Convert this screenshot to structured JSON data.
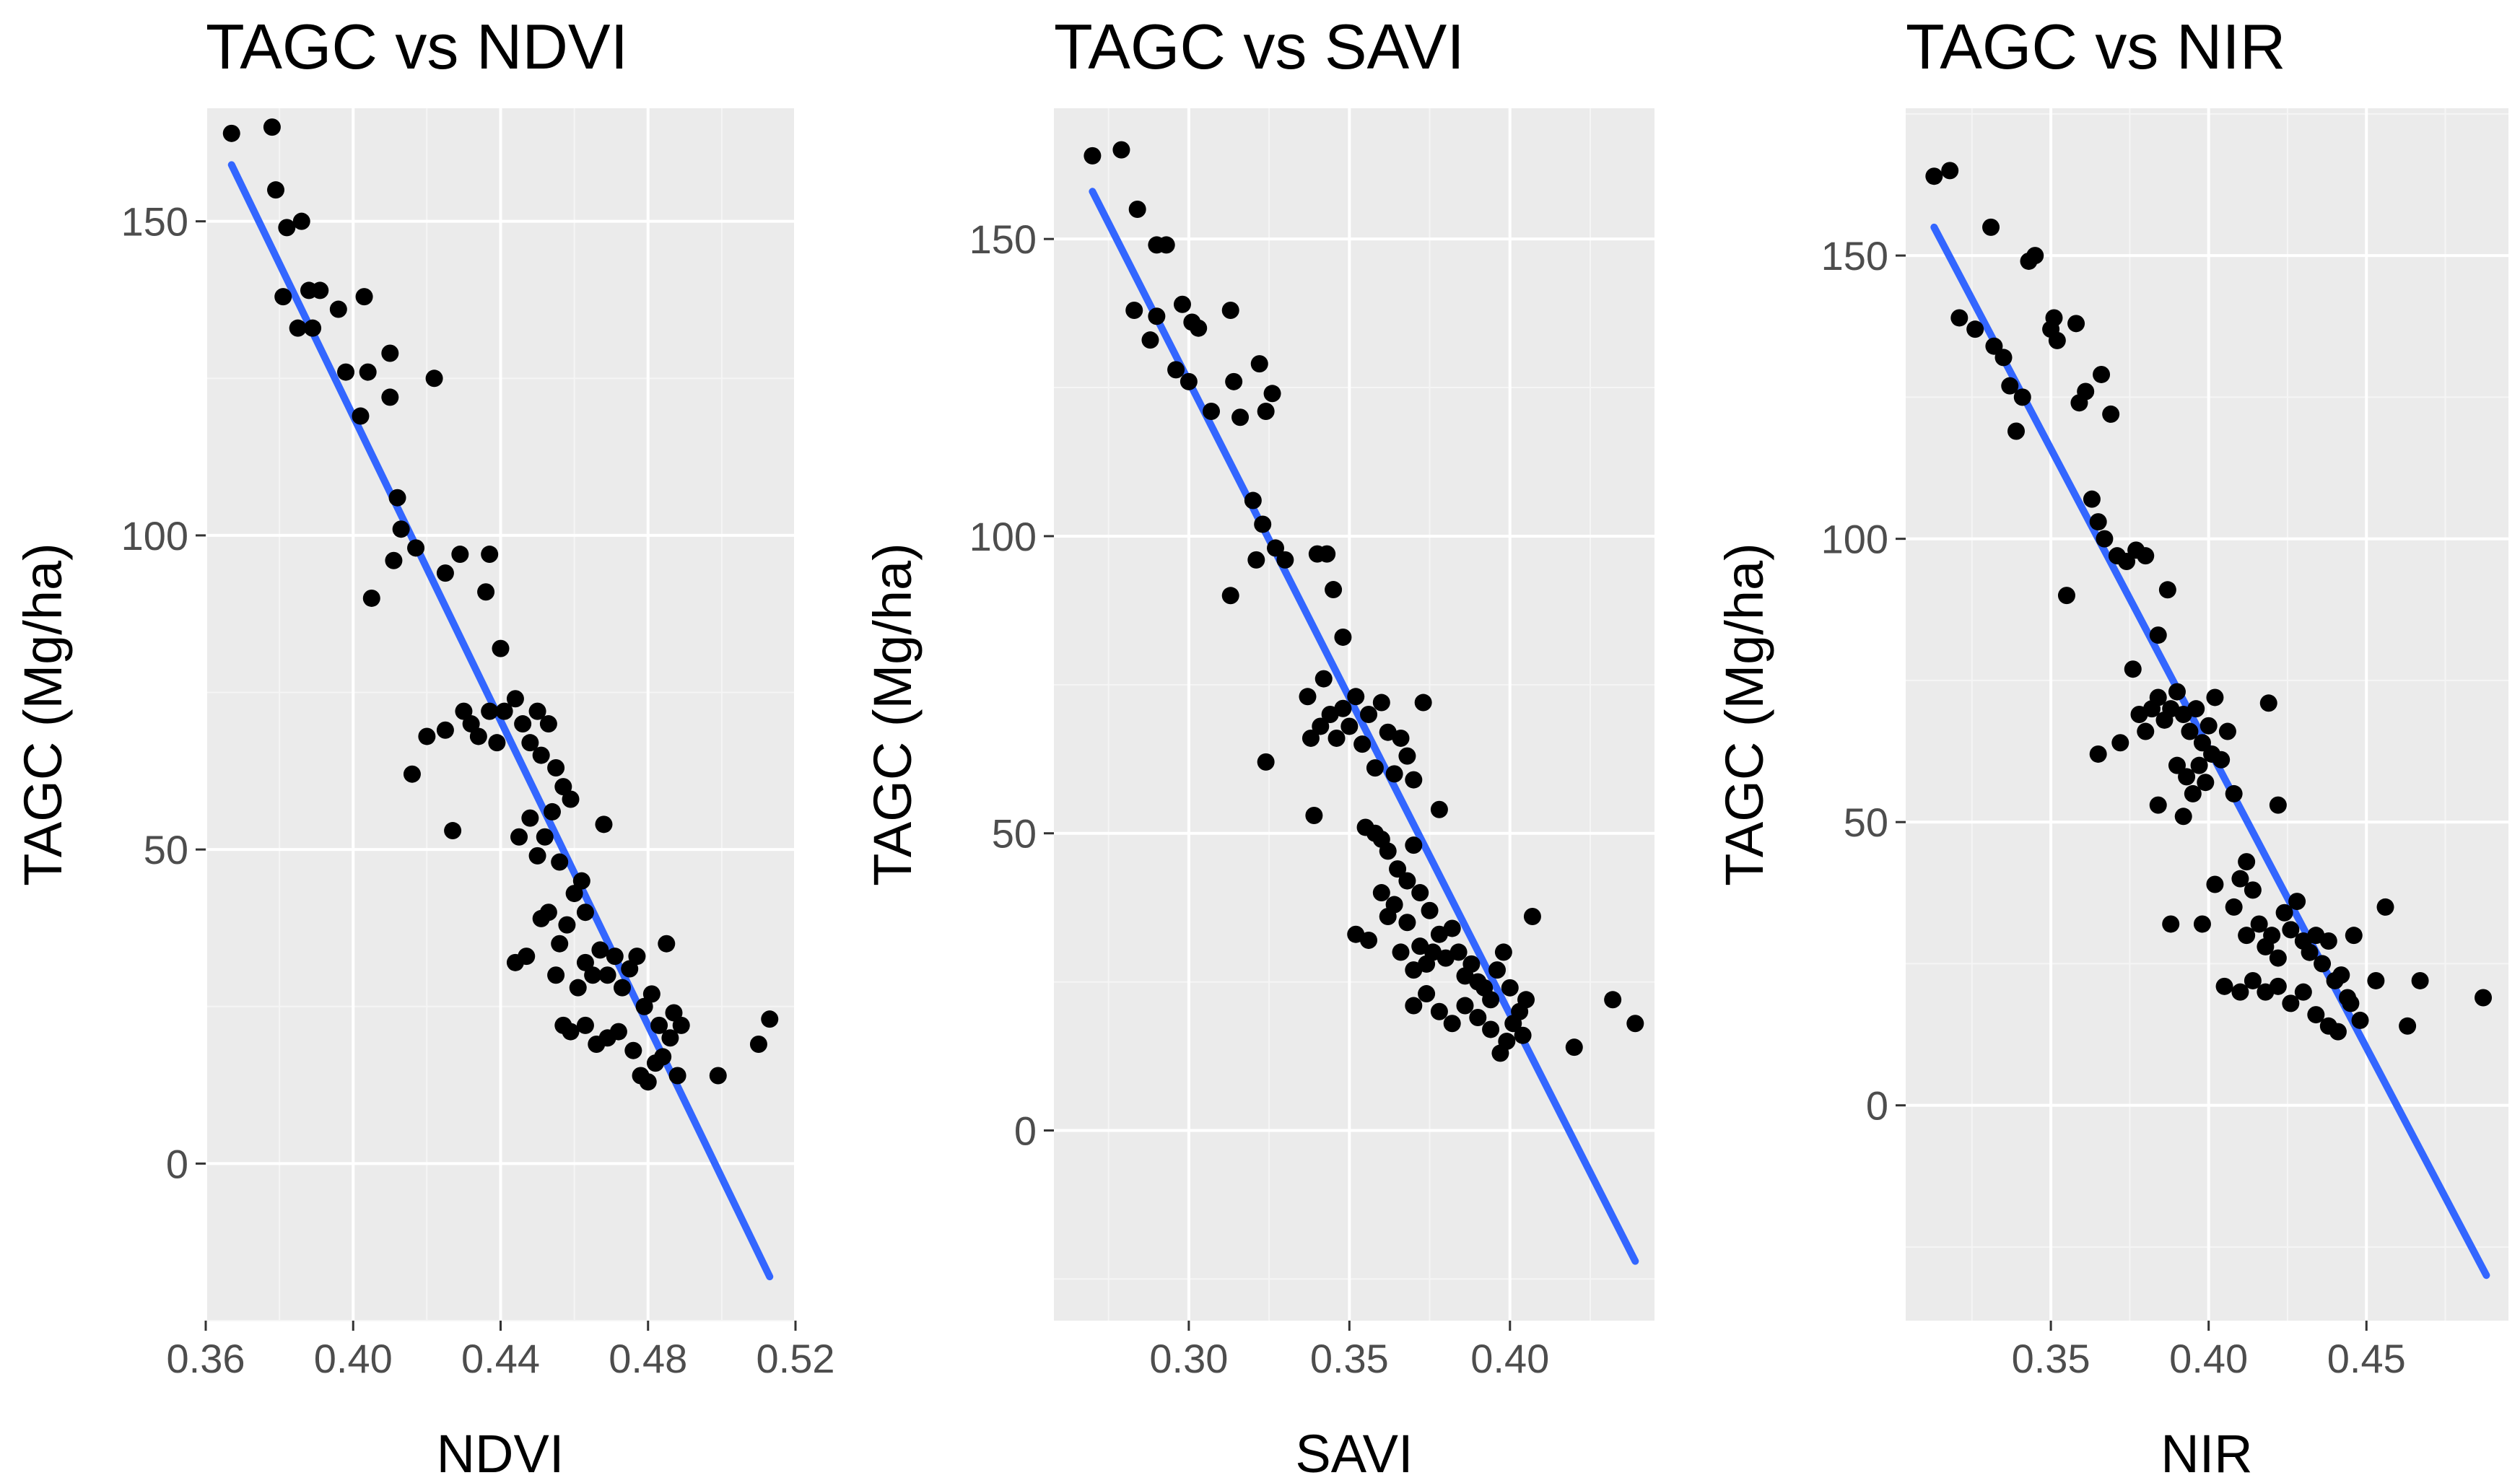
{
  "colors": {
    "panel_background": "#ebebeb",
    "grid_major": "#ffffff",
    "grid_minor": "#f5f5f5",
    "point": "#000000",
    "fit_line": "#3366ff",
    "tick_label": "#4d4d4d",
    "tick_mark": "#333333"
  },
  "chart_data": [
    {
      "type": "scatter",
      "title": "TAGC vs NDVI",
      "xlabel": "NDVI",
      "ylabel": "TAGC (Mg/ha)",
      "xlim": [
        0.36,
        0.52
      ],
      "ylim": [
        -25,
        168
      ],
      "xticks": [
        0.36,
        0.4,
        0.44,
        0.48,
        0.52
      ],
      "xtick_labels": [
        "0.36",
        "0.40",
        "0.44",
        "0.48",
        "0.52"
      ],
      "yticks": [
        0,
        50,
        100,
        150
      ],
      "ytick_labels": [
        "0",
        "50",
        "100",
        "150"
      ],
      "grid": true,
      "fit_line": {
        "x": [
          0.367,
          0.513
        ],
        "y": [
          159,
          -18
        ]
      },
      "points": [
        [
          0.367,
          164
        ],
        [
          0.378,
          165
        ],
        [
          0.379,
          155
        ],
        [
          0.382,
          149
        ],
        [
          0.386,
          150
        ],
        [
          0.381,
          138
        ],
        [
          0.385,
          133
        ],
        [
          0.388,
          139
        ],
        [
          0.391,
          139
        ],
        [
          0.389,
          133
        ],
        [
          0.396,
          136
        ],
        [
          0.398,
          126
        ],
        [
          0.403,
          138
        ],
        [
          0.402,
          119
        ],
        [
          0.404,
          126
        ],
        [
          0.41,
          129
        ],
        [
          0.41,
          122
        ],
        [
          0.412,
          106
        ],
        [
          0.413,
          101
        ],
        [
          0.411,
          96
        ],
        [
          0.417,
          98
        ],
        [
          0.405,
          90
        ],
        [
          0.422,
          125
        ],
        [
          0.425,
          94
        ],
        [
          0.429,
          97
        ],
        [
          0.437,
          97
        ],
        [
          0.436,
          91
        ],
        [
          0.44,
          82
        ],
        [
          0.416,
          62
        ],
        [
          0.42,
          68
        ],
        [
          0.425,
          69
        ],
        [
          0.427,
          53
        ],
        [
          0.43,
          72
        ],
        [
          0.432,
          70
        ],
        [
          0.434,
          68
        ],
        [
          0.437,
          72
        ],
        [
          0.439,
          67
        ],
        [
          0.441,
          72
        ],
        [
          0.444,
          74
        ],
        [
          0.446,
          70
        ],
        [
          0.448,
          67
        ],
        [
          0.45,
          72
        ],
        [
          0.451,
          65
        ],
        [
          0.453,
          70
        ],
        [
          0.455,
          63
        ],
        [
          0.457,
          60
        ],
        [
          0.459,
          58
        ],
        [
          0.445,
          52
        ],
        [
          0.448,
          55
        ],
        [
          0.45,
          49
        ],
        [
          0.452,
          52
        ],
        [
          0.454,
          56
        ],
        [
          0.456,
          48
        ],
        [
          0.46,
          43
        ],
        [
          0.462,
          45
        ],
        [
          0.463,
          40
        ],
        [
          0.468,
          54
        ],
        [
          0.451,
          39
        ],
        [
          0.453,
          40
        ],
        [
          0.456,
          35
        ],
        [
          0.458,
          38
        ],
        [
          0.461,
          28
        ],
        [
          0.463,
          32
        ],
        [
          0.465,
          30
        ],
        [
          0.467,
          34
        ],
        [
          0.469,
          30
        ],
        [
          0.471,
          33
        ],
        [
          0.473,
          28
        ],
        [
          0.475,
          31
        ],
        [
          0.477,
          33
        ],
        [
          0.479,
          25
        ],
        [
          0.481,
          27
        ],
        [
          0.483,
          22
        ],
        [
          0.485,
          35
        ],
        [
          0.487,
          24
        ],
        [
          0.489,
          22
        ],
        [
          0.444,
          32
        ],
        [
          0.447,
          33
        ],
        [
          0.455,
          30
        ],
        [
          0.457,
          22
        ],
        [
          0.459,
          21
        ],
        [
          0.463,
          22
        ],
        [
          0.466,
          19
        ],
        [
          0.469,
          20
        ],
        [
          0.472,
          21
        ],
        [
          0.476,
          18
        ],
        [
          0.478,
          14
        ],
        [
          0.48,
          13
        ],
        [
          0.482,
          16
        ],
        [
          0.484,
          17
        ],
        [
          0.486,
          20
        ],
        [
          0.488,
          14
        ],
        [
          0.499,
          14
        ],
        [
          0.51,
          19
        ],
        [
          0.513,
          23
        ]
      ]
    },
    {
      "type": "scatter",
      "title": "TAGC vs SAVI",
      "xlabel": "SAVI",
      "ylabel": "TAGC (Mg/ha)",
      "xlim": [
        0.258,
        0.445
      ],
      "ylim": [
        -32,
        172
      ],
      "xticks": [
        0.3,
        0.35,
        0.4
      ],
      "xtick_labels": [
        "0.30",
        "0.35",
        "0.40"
      ],
      "yticks": [
        0,
        50,
        100,
        150
      ],
      "ytick_labels": [
        "0",
        "50",
        "100",
        "150"
      ],
      "grid": true,
      "fit_line": {
        "x": [
          0.27,
          0.439
        ],
        "y": [
          158,
          -22
        ]
      },
      "points": [
        [
          0.27,
          164
        ],
        [
          0.279,
          165
        ],
        [
          0.284,
          155
        ],
        [
          0.29,
          149
        ],
        [
          0.293,
          149
        ],
        [
          0.283,
          138
        ],
        [
          0.288,
          133
        ],
        [
          0.29,
          137
        ],
        [
          0.298,
          139
        ],
        [
          0.301,
          136
        ],
        [
          0.303,
          135
        ],
        [
          0.296,
          128
        ],
        [
          0.3,
          126
        ],
        [
          0.307,
          121
        ],
        [
          0.313,
          138
        ],
        [
          0.314,
          126
        ],
        [
          0.316,
          120
        ],
        [
          0.322,
          129
        ],
        [
          0.324,
          121
        ],
        [
          0.326,
          124
        ],
        [
          0.32,
          106
        ],
        [
          0.323,
          102
        ],
        [
          0.327,
          98
        ],
        [
          0.33,
          96
        ],
        [
          0.321,
          96
        ],
        [
          0.313,
          90
        ],
        [
          0.34,
          97
        ],
        [
          0.343,
          97
        ],
        [
          0.345,
          91
        ],
        [
          0.348,
          83
        ],
        [
          0.324,
          62
        ],
        [
          0.337,
          73
        ],
        [
          0.338,
          66
        ],
        [
          0.339,
          53
        ],
        [
          0.341,
          68
        ],
        [
          0.342,
          76
        ],
        [
          0.344,
          70
        ],
        [
          0.346,
          66
        ],
        [
          0.348,
          71
        ],
        [
          0.35,
          68
        ],
        [
          0.352,
          73
        ],
        [
          0.354,
          65
        ],
        [
          0.356,
          70
        ],
        [
          0.358,
          61
        ],
        [
          0.36,
          72
        ],
        [
          0.362,
          67
        ],
        [
          0.364,
          60
        ],
        [
          0.366,
          66
        ],
        [
          0.368,
          63
        ],
        [
          0.37,
          59
        ],
        [
          0.373,
          72
        ],
        [
          0.355,
          51
        ],
        [
          0.358,
          50
        ],
        [
          0.36,
          49
        ],
        [
          0.362,
          47
        ],
        [
          0.365,
          44
        ],
        [
          0.368,
          42
        ],
        [
          0.37,
          48
        ],
        [
          0.372,
          40
        ],
        [
          0.375,
          37
        ],
        [
          0.378,
          54
        ],
        [
          0.352,
          33
        ],
        [
          0.356,
          32
        ],
        [
          0.36,
          40
        ],
        [
          0.362,
          36
        ],
        [
          0.364,
          38
        ],
        [
          0.366,
          30
        ],
        [
          0.368,
          35
        ],
        [
          0.37,
          27
        ],
        [
          0.372,
          31
        ],
        [
          0.374,
          28
        ],
        [
          0.376,
          30
        ],
        [
          0.378,
          33
        ],
        [
          0.38,
          29
        ],
        [
          0.382,
          34
        ],
        [
          0.384,
          30
        ],
        [
          0.386,
          26
        ],
        [
          0.388,
          28
        ],
        [
          0.39,
          25
        ],
        [
          0.392,
          24
        ],
        [
          0.394,
          22
        ],
        [
          0.396,
          27
        ],
        [
          0.398,
          30
        ],
        [
          0.4,
          24
        ],
        [
          0.403,
          20
        ],
        [
          0.405,
          22
        ],
        [
          0.407,
          36
        ],
        [
          0.37,
          21
        ],
        [
          0.374,
          23
        ],
        [
          0.378,
          20
        ],
        [
          0.382,
          18
        ],
        [
          0.386,
          21
        ],
        [
          0.39,
          19
        ],
        [
          0.394,
          17
        ],
        [
          0.397,
          13
        ],
        [
          0.399,
          15
        ],
        [
          0.401,
          18
        ],
        [
          0.404,
          16
        ],
        [
          0.42,
          14
        ],
        [
          0.432,
          22
        ],
        [
          0.439,
          18
        ]
      ]
    },
    {
      "type": "scatter",
      "title": "TAGC vs NIR",
      "xlabel": "NIR",
      "ylabel": "TAGC (Mg/ha)",
      "xlim": [
        0.304,
        0.495
      ],
      "ylim": [
        -38,
        176
      ],
      "xticks": [
        0.35,
        0.4,
        0.45
      ],
      "xtick_labels": [
        "0.35",
        "0.40",
        "0.45"
      ],
      "yticks": [
        0,
        50,
        100,
        150
      ],
      "ytick_labels": [
        "0",
        "50",
        "100",
        "150"
      ],
      "grid": true,
      "fit_line": {
        "x": [
          0.313,
          0.488
        ],
        "y": [
          155,
          -30
        ]
      },
      "points": [
        [
          0.313,
          164
        ],
        [
          0.318,
          165
        ],
        [
          0.321,
          139
        ],
        [
          0.331,
          155
        ],
        [
          0.343,
          149
        ],
        [
          0.345,
          150
        ],
        [
          0.326,
          137
        ],
        [
          0.332,
          134
        ],
        [
          0.335,
          132
        ],
        [
          0.337,
          127
        ],
        [
          0.339,
          119
        ],
        [
          0.341,
          125
        ],
        [
          0.35,
          137
        ],
        [
          0.351,
          139
        ],
        [
          0.352,
          135
        ],
        [
          0.358,
          138
        ],
        [
          0.359,
          124
        ],
        [
          0.361,
          126
        ],
        [
          0.366,
          129
        ],
        [
          0.369,
          122
        ],
        [
          0.363,
          107
        ],
        [
          0.365,
          103
        ],
        [
          0.367,
          100
        ],
        [
          0.371,
          97
        ],
        [
          0.374,
          96
        ],
        [
          0.377,
          98
        ],
        [
          0.38,
          97
        ],
        [
          0.355,
          90
        ],
        [
          0.384,
          83
        ],
        [
          0.387,
          91
        ],
        [
          0.365,
          62
        ],
        [
          0.372,
          64
        ],
        [
          0.376,
          77
        ],
        [
          0.378,
          69
        ],
        [
          0.38,
          66
        ],
        [
          0.382,
          70
        ],
        [
          0.384,
          72
        ],
        [
          0.386,
          68
        ],
        [
          0.388,
          70
        ],
        [
          0.39,
          73
        ],
        [
          0.392,
          69
        ],
        [
          0.394,
          66
        ],
        [
          0.396,
          70
        ],
        [
          0.398,
          64
        ],
        [
          0.4,
          67
        ],
        [
          0.402,
          72
        ],
        [
          0.404,
          61
        ],
        [
          0.406,
          66
        ],
        [
          0.39,
          60
        ],
        [
          0.393,
          58
        ],
        [
          0.395,
          55
        ],
        [
          0.397,
          60
        ],
        [
          0.399,
          57
        ],
        [
          0.401,
          62
        ],
        [
          0.384,
          53
        ],
        [
          0.392,
          51
        ],
        [
          0.408,
          55
        ],
        [
          0.41,
          40
        ],
        [
          0.412,
          43
        ],
        [
          0.414,
          38
        ],
        [
          0.419,
          71
        ],
        [
          0.422,
          53
        ],
        [
          0.402,
          39
        ],
        [
          0.398,
          32
        ],
        [
          0.388,
          32
        ],
        [
          0.408,
          35
        ],
        [
          0.412,
          30
        ],
        [
          0.416,
          32
        ],
        [
          0.418,
          28
        ],
        [
          0.42,
          30
        ],
        [
          0.422,
          26
        ],
        [
          0.424,
          34
        ],
        [
          0.426,
          31
        ],
        [
          0.428,
          36
        ],
        [
          0.43,
          29
        ],
        [
          0.432,
          27
        ],
        [
          0.434,
          30
        ],
        [
          0.436,
          25
        ],
        [
          0.438,
          29
        ],
        [
          0.44,
          22
        ],
        [
          0.442,
          23
        ],
        [
          0.444,
          19
        ],
        [
          0.446,
          30
        ],
        [
          0.405,
          21
        ],
        [
          0.41,
          20
        ],
        [
          0.414,
          22
        ],
        [
          0.418,
          20
        ],
        [
          0.422,
          21
        ],
        [
          0.426,
          18
        ],
        [
          0.43,
          20
        ],
        [
          0.434,
          16
        ],
        [
          0.438,
          14
        ],
        [
          0.441,
          13
        ],
        [
          0.445,
          18
        ],
        [
          0.448,
          15
        ],
        [
          0.453,
          22
        ],
        [
          0.456,
          35
        ],
        [
          0.463,
          14
        ],
        [
          0.467,
          22
        ],
        [
          0.487,
          19
        ]
      ]
    }
  ]
}
